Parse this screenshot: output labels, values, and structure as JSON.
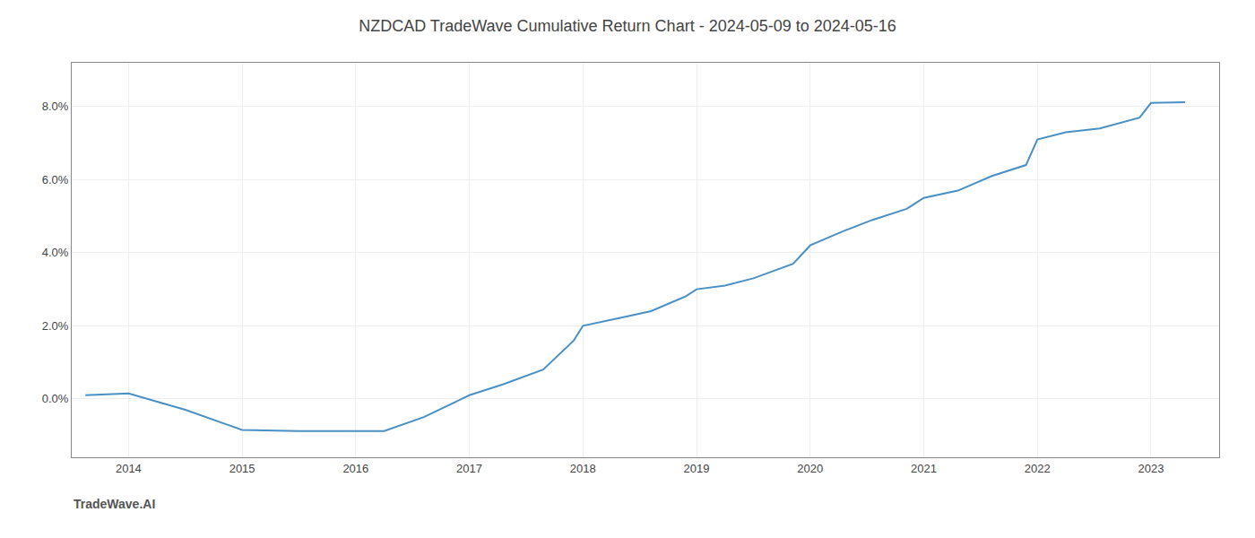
{
  "chart_data": {
    "type": "line",
    "title": "NZDCAD TradeWave Cumulative Return Chart - 2024-05-09 to 2024-05-16",
    "annotations": [
      "TradeWave.AI"
    ],
    "color": "#4a90c4",
    "x": [
      2013.62,
      2014.0,
      2014.5,
      2015.0,
      2015.5,
      2016.0,
      2016.25,
      2016.6,
      2017.0,
      2017.3,
      2017.65,
      2017.92,
      2018.0,
      2018.3,
      2018.6,
      2018.9,
      2019.0,
      2019.25,
      2019.5,
      2019.85,
      2020.0,
      2020.3,
      2020.55,
      2020.85,
      2021.0,
      2021.3,
      2021.6,
      2021.9,
      2022.0,
      2022.25,
      2022.55,
      2022.9,
      2023.0,
      2023.3
    ],
    "values": [
      0.001,
      0.0015,
      -0.003,
      -0.0085,
      -0.0088,
      -0.0088,
      -0.0088,
      -0.005,
      0.001,
      0.004,
      0.008,
      0.016,
      0.02,
      0.022,
      0.024,
      0.028,
      0.03,
      0.031,
      0.033,
      0.037,
      0.042,
      0.046,
      0.049,
      0.052,
      0.055,
      0.057,
      0.061,
      0.064,
      0.071,
      0.073,
      0.074,
      0.077,
      0.081,
      0.0812
    ],
    "xlim": [
      2013.5,
      2023.6
    ],
    "ylim": [
      -0.016,
      0.092
    ],
    "xticks": [
      2014,
      2015,
      2016,
      2017,
      2018,
      2019,
      2020,
      2021,
      2022,
      2023
    ],
    "yticks": [
      {
        "value": 0.0,
        "label": "0.0%"
      },
      {
        "value": 0.02,
        "label": "2.0%"
      },
      {
        "value": 0.04,
        "label": "4.0%"
      },
      {
        "value": 0.06,
        "label": "6.0%"
      },
      {
        "value": 0.08,
        "label": "8.0%"
      }
    ],
    "grid": true
  }
}
